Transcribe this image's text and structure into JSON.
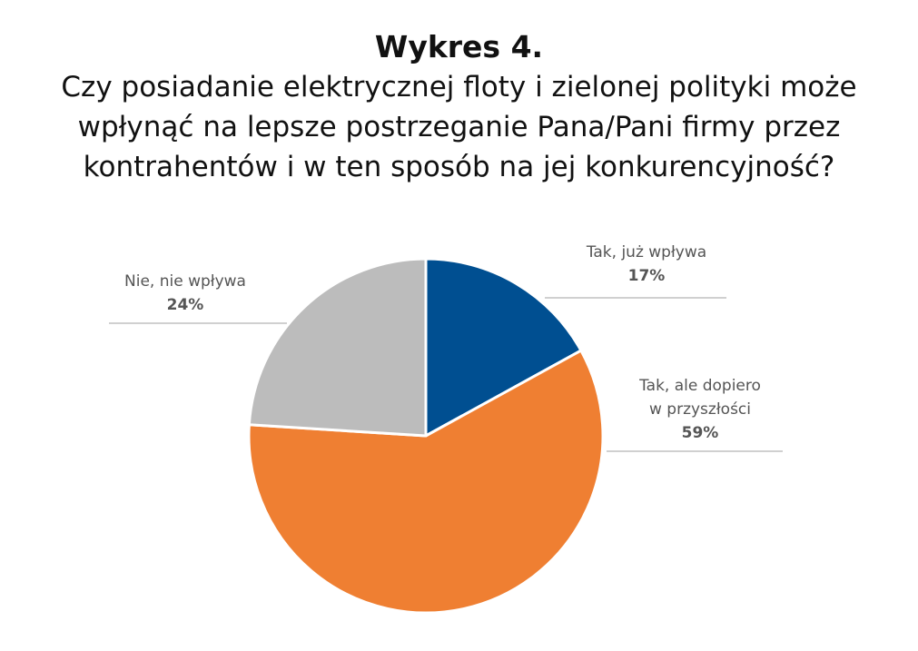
{
  "chart_data": {
    "type": "pie",
    "number": "Wykres 4.",
    "title": "Czy posiadanie elektrycznej floty i zielonej polityki może\nwpłynąć na lepsze postrzeganie Pana/Pani firmy przez\nkontrahentów i w ten sposób na jej konkurencyjność?",
    "slices": [
      {
        "label_lines": [
          "Tak, już wpływa"
        ],
        "value": 17,
        "value_label": "17%",
        "color": "#004f91"
      },
      {
        "label_lines": [
          "Tak, ale dopiero",
          "w przyszłości"
        ],
        "value": 59,
        "value_label": "59%",
        "color": "#ef7f32"
      },
      {
        "label_lines": [
          "Nie, nie wpływa"
        ],
        "value": 24,
        "value_label": "24%",
        "color": "#bcbcbc"
      }
    ],
    "start_angle": "top (12 o'clock)",
    "direction": "clockwise",
    "legend": "none"
  }
}
